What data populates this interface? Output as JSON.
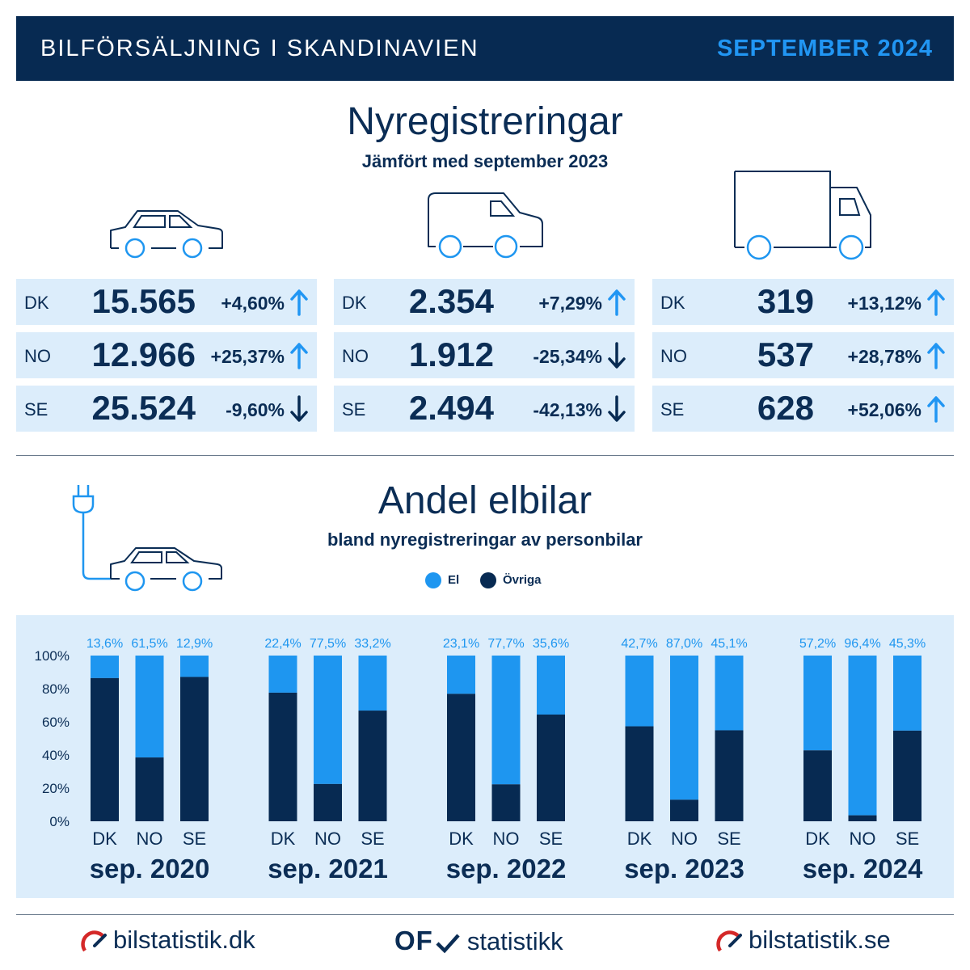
{
  "header": {
    "title": "BILFÖRSÄLJNING I SKANDINAVIEN",
    "date": "SEPTEMBER 2024"
  },
  "registrations": {
    "title": "Nyregistreringar",
    "subtitle": "Jämfört med september 2023",
    "groups": [
      {
        "icon": "car-icon",
        "rows": [
          {
            "country": "DK",
            "value": "15.565",
            "change": "+4,60%",
            "trend": "up"
          },
          {
            "country": "NO",
            "value": "12.966",
            "change": "+25,37%",
            "trend": "up"
          },
          {
            "country": "SE",
            "value": "25.524",
            "change": "-9,60%",
            "trend": "down"
          }
        ]
      },
      {
        "icon": "van-icon",
        "rows": [
          {
            "country": "DK",
            "value": "2.354",
            "change": "+7,29%",
            "trend": "up"
          },
          {
            "country": "NO",
            "value": "1.912",
            "change": "-25,34%",
            "trend": "down"
          },
          {
            "country": "SE",
            "value": "2.494",
            "change": "-42,13%",
            "trend": "down"
          }
        ]
      },
      {
        "icon": "truck-icon",
        "rows": [
          {
            "country": "DK",
            "value": "319",
            "change": "+13,12%",
            "trend": "up"
          },
          {
            "country": "NO",
            "value": "537",
            "change": "+28,78%",
            "trend": "up"
          },
          {
            "country": "SE",
            "value": "628",
            "change": "+52,06%",
            "trend": "up"
          }
        ]
      }
    ]
  },
  "ev": {
    "title": "Andel elbilar",
    "subtitle": "bland nyregistreringar av personbilar",
    "legend": {
      "el": "El",
      "other": "Övriga"
    }
  },
  "colors": {
    "el": "#1e96f0",
    "other": "#072a52",
    "accent": "#2196f3",
    "panel": "#dcedfb"
  },
  "chart_data": {
    "type": "bar",
    "stacked": true,
    "percent": true,
    "ylim": [
      0,
      100
    ],
    "yticks": [
      "0%",
      "20%",
      "40%",
      "60%",
      "80%",
      "100%"
    ],
    "groups": [
      {
        "label": "sep. 2020",
        "categories": [
          "DK",
          "NO",
          "SE"
        ],
        "el": [
          13.6,
          61.5,
          12.9
        ],
        "labels": [
          "13,6%",
          "61,5%",
          "12,9%"
        ]
      },
      {
        "label": "sep. 2021",
        "categories": [
          "DK",
          "NO",
          "SE"
        ],
        "el": [
          22.4,
          77.5,
          33.2
        ],
        "labels": [
          "22,4%",
          "77,5%",
          "33,2%"
        ]
      },
      {
        "label": "sep. 2022",
        "categories": [
          "DK",
          "NO",
          "SE"
        ],
        "el": [
          23.1,
          77.7,
          35.6
        ],
        "labels": [
          "23,1%",
          "77,7%",
          "35,6%"
        ]
      },
      {
        "label": "sep. 2023",
        "categories": [
          "DK",
          "NO",
          "SE"
        ],
        "el": [
          42.7,
          87.0,
          45.1
        ],
        "labels": [
          "42,7%",
          "87,0%",
          "45,1%"
        ]
      },
      {
        "label": "sep. 2024",
        "categories": [
          "DK",
          "NO",
          "SE"
        ],
        "el": [
          57.2,
          96.4,
          45.3
        ],
        "labels": [
          "57,2%",
          "96,4%",
          "45,3%"
        ]
      }
    ],
    "series": [
      {
        "name": "El"
      },
      {
        "name": "Övriga"
      }
    ],
    "legend_position": "top-center",
    "grid": false
  },
  "footer": {
    "left": "bilstatistik.dk",
    "middle_logo": "OF",
    "middle": "statistikk",
    "right": "bilstatistik.se"
  }
}
